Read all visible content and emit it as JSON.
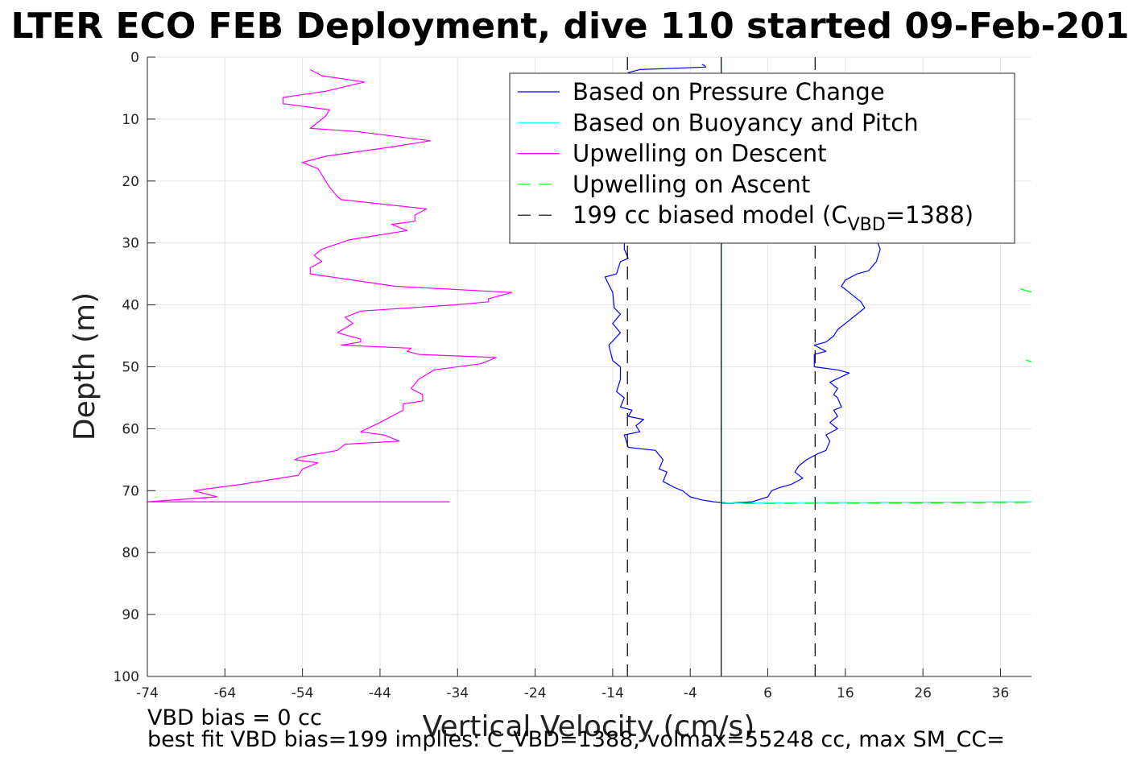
{
  "chart_data": {
    "type": "line",
    "title": "LTER ECO FEB Deployment, dive 110 started 09-Feb-201",
    "xlabel": "Vertical Velocity (cm/s)",
    "ylabel": "Depth (m)",
    "xlim": [
      -74,
      40
    ],
    "ylim": [
      0,
      100
    ],
    "y_reversed": true,
    "grid": true,
    "legend_position": "top-right",
    "xticks": [
      -74,
      -64,
      -54,
      -44,
      -34,
      -24,
      -14,
      -4,
      6,
      16,
      26,
      36
    ],
    "yticks": [
      0,
      10,
      20,
      30,
      40,
      50,
      60,
      70,
      80,
      90,
      100
    ],
    "legend": [
      {
        "label": "Based on Pressure Change",
        "style": "solid",
        "color": "#0000ff"
      },
      {
        "label": "Based on Buoyancy and Pitch",
        "style": "solid",
        "color": "#00ffff"
      },
      {
        "label": "Upwelling on Descent",
        "style": "solid",
        "color": "#ff00ff"
      },
      {
        "label": "Upwelling on Ascent",
        "style": "dashed",
        "color": "#00ff00"
      },
      {
        "label": "199 cc biased model (C",
        "sub": "VBD",
        "suffix": "=1388)",
        "style": "dashed",
        "color": "#000000"
      }
    ],
    "series": [
      {
        "name": "Based on Pressure Change",
        "color": "#0000ff",
        "style": "solid",
        "points": [
          [
            -2.5,
            1.2
          ],
          [
            -2.2,
            1.3
          ],
          [
            -2.0,
            1.6
          ],
          [
            -10.5,
            2.0
          ],
          [
            -12.0,
            2.5
          ],
          [
            -12.5,
            31.0
          ],
          [
            -12.0,
            32.5
          ],
          [
            -13.0,
            33.0
          ],
          [
            -13.5,
            35.0
          ],
          [
            -15.0,
            35.5
          ],
          [
            -14.0,
            38.0
          ],
          [
            -13.8,
            40.5
          ],
          [
            -13.0,
            41.5
          ],
          [
            -14.0,
            43.0
          ],
          [
            -13.0,
            44.5
          ],
          [
            -14.5,
            46.5
          ],
          [
            -14.0,
            49.0
          ],
          [
            -13.0,
            50.0
          ],
          [
            -13.0,
            52.0
          ],
          [
            -13.5,
            54.0
          ],
          [
            -12.5,
            55.0
          ],
          [
            -13.0,
            56.5
          ],
          [
            -11.5,
            57.0
          ],
          [
            -12.0,
            58.0
          ],
          [
            -10.0,
            58.5
          ],
          [
            -11.0,
            59.5
          ],
          [
            -10.5,
            60.5
          ],
          [
            -12.5,
            61.0
          ],
          [
            -12.0,
            63.0
          ],
          [
            -8.5,
            63.5
          ],
          [
            -7.5,
            65.0
          ],
          [
            -8.0,
            66.5
          ],
          [
            -7.0,
            67.0
          ],
          [
            -7.5,
            68.5
          ],
          [
            -6.0,
            69.5
          ],
          [
            -5.0,
            70.0
          ],
          [
            -4.0,
            71.0
          ],
          [
            -2.5,
            71.5
          ],
          [
            -1.0,
            71.8
          ],
          [
            1.0,
            72.0
          ],
          [
            4.0,
            71.8
          ],
          [
            6.0,
            71.0
          ],
          [
            6.5,
            70.0
          ],
          [
            7.5,
            69.5
          ],
          [
            9.0,
            69.0
          ],
          [
            10.5,
            68.0
          ],
          [
            9.5,
            67.0
          ],
          [
            10.0,
            66.0
          ],
          [
            11.0,
            65.0
          ],
          [
            12.5,
            64.0
          ],
          [
            13.5,
            63.5
          ],
          [
            14.0,
            62.0
          ],
          [
            13.5,
            61.0
          ],
          [
            15.0,
            60.0
          ],
          [
            14.0,
            59.0
          ],
          [
            15.0,
            58.0
          ],
          [
            14.5,
            57.0
          ],
          [
            15.5,
            56.5
          ],
          [
            15.0,
            55.0
          ],
          [
            14.5,
            54.5
          ],
          [
            15.0,
            53.5
          ],
          [
            14.0,
            52.5
          ],
          [
            16.5,
            51.0
          ],
          [
            15.0,
            50.5
          ],
          [
            12.0,
            50.0
          ],
          [
            12.0,
            48.0
          ],
          [
            13.5,
            47.5
          ],
          [
            12.0,
            46.5
          ],
          [
            13.5,
            46.0
          ],
          [
            14.5,
            45.0
          ],
          [
            15.0,
            44.0
          ],
          [
            16.0,
            43.0
          ],
          [
            17.0,
            42.0
          ],
          [
            18.5,
            40.5
          ],
          [
            18.0,
            39.5
          ],
          [
            16.5,
            38.0
          ],
          [
            15.5,
            37.0
          ],
          [
            16.0,
            36.0
          ],
          [
            17.5,
            35.0
          ],
          [
            19.0,
            34.5
          ],
          [
            20.0,
            33.0
          ],
          [
            20.5,
            31.0
          ],
          [
            20.0,
            29.5
          ],
          [
            18.0,
            28.0
          ]
        ]
      },
      {
        "name": "Based on Buoyancy and Pitch",
        "color": "#00ffff",
        "style": "solid",
        "points": [
          [
            0,
            0.4
          ],
          [
            0,
            72.0
          ],
          [
            40,
            71.8
          ]
        ]
      },
      {
        "name": "Upwelling on Descent",
        "color": "#ff00ff",
        "style": "solid",
        "points": [
          [
            -53.0,
            2.0
          ],
          [
            -51.5,
            3.0
          ],
          [
            -46.0,
            4.0
          ],
          [
            -51.0,
            5.5
          ],
          [
            -56.5,
            6.5
          ],
          [
            -56.5,
            7.5
          ],
          [
            -50.5,
            8.5
          ],
          [
            -51.0,
            9.5
          ],
          [
            -52.5,
            11.0
          ],
          [
            -53.0,
            11.5
          ],
          [
            -47.0,
            12.0
          ],
          [
            -37.5,
            13.5
          ],
          [
            -42.5,
            14.5
          ],
          [
            -51.0,
            16.0
          ],
          [
            -54.0,
            17.0
          ],
          [
            -52.0,
            18.0
          ],
          [
            -51.0,
            20.0
          ],
          [
            -50.5,
            21.0
          ],
          [
            -49.5,
            22.5
          ],
          [
            -49.0,
            23.0
          ],
          [
            -38.0,
            24.5
          ],
          [
            -39.5,
            25.5
          ],
          [
            -39.5,
            26.5
          ],
          [
            -42.5,
            27.0
          ],
          [
            -40.5,
            28.0
          ],
          [
            -48.0,
            29.5
          ],
          [
            -51.5,
            31.0
          ],
          [
            -52.5,
            32.0
          ],
          [
            -51.5,
            33.0
          ],
          [
            -53.0,
            34.0
          ],
          [
            -53.0,
            35.0
          ],
          [
            -42.0,
            37.0
          ],
          [
            -27.0,
            38.0
          ],
          [
            -30.0,
            39.0
          ],
          [
            -30.0,
            39.5
          ],
          [
            -34.5,
            40.0
          ],
          [
            -46.5,
            41.0
          ],
          [
            -48.5,
            42.0
          ],
          [
            -47.5,
            43.0
          ],
          [
            -49.5,
            44.5
          ],
          [
            -46.5,
            45.5
          ],
          [
            -46.5,
            46.0
          ],
          [
            -49.0,
            46.5
          ],
          [
            -40.0,
            47.0
          ],
          [
            -40.5,
            47.5
          ],
          [
            -39.0,
            48.0
          ],
          [
            -29.0,
            48.5
          ],
          [
            -31.0,
            49.5
          ],
          [
            -37.0,
            50.5
          ],
          [
            -39.0,
            52.0
          ],
          [
            -40.0,
            53.5
          ],
          [
            -38.5,
            54.5
          ],
          [
            -38.5,
            55.5
          ],
          [
            -41.0,
            56.0
          ],
          [
            -41.0,
            57.0
          ],
          [
            -44.0,
            59.0
          ],
          [
            -46.5,
            60.5
          ],
          [
            -43.5,
            61.0
          ],
          [
            -41.5,
            62.0
          ],
          [
            -48.5,
            62.5
          ],
          [
            -49.5,
            63.5
          ],
          [
            -54.0,
            64.5
          ],
          [
            -55.0,
            65.0
          ],
          [
            -52.0,
            65.5
          ],
          [
            -54.0,
            66.5
          ],
          [
            -54.5,
            67.5
          ],
          [
            -62.0,
            69.0
          ],
          [
            -68.0,
            70.0
          ],
          [
            -65.0,
            71.0
          ],
          [
            -74.0,
            71.8
          ],
          [
            -35.0,
            71.8
          ]
        ]
      },
      {
        "name": "Upwelling on Ascent",
        "color": "#00ff00",
        "style": "dashed",
        "points": [
          [
            0,
            72.1
          ],
          [
            40,
            71.9
          ]
        ]
      },
      {
        "name": "Upwelling on Ascent (fragment 2)",
        "color": "#00ff00",
        "style": "dashed",
        "points": [
          [
            38.5,
            37.4
          ],
          [
            40,
            37.9
          ]
        ]
      },
      {
        "name": "Upwelling on Ascent (fragment 3)",
        "color": "#00ff00",
        "style": "dashed",
        "points": [
          [
            39.3,
            48.9
          ],
          [
            40,
            49.2
          ]
        ]
      },
      {
        "name": "199 cc biased model (C_VBD=1388)",
        "color": "#000000",
        "style": "dashed",
        "points": [
          [
            -12.1,
            0
          ],
          [
            -12.1,
            100
          ]
        ]
      },
      {
        "name": "199 cc biased model (C_VBD=1388) (upper)",
        "color": "#000000",
        "style": "dashed",
        "points": [
          [
            12.1,
            0
          ],
          [
            12.1,
            100
          ]
        ]
      },
      {
        "name": "vertical reference line",
        "color": "#000000",
        "style": "solid",
        "points": [
          [
            0,
            0
          ],
          [
            0,
            100
          ]
        ]
      }
    ]
  },
  "footer": {
    "line1": "VBD bias = 0 cc",
    "line2": "best fit VBD bias=199 implies: C_VBD=1388, volmax=55248 cc, max SM_CC="
  }
}
